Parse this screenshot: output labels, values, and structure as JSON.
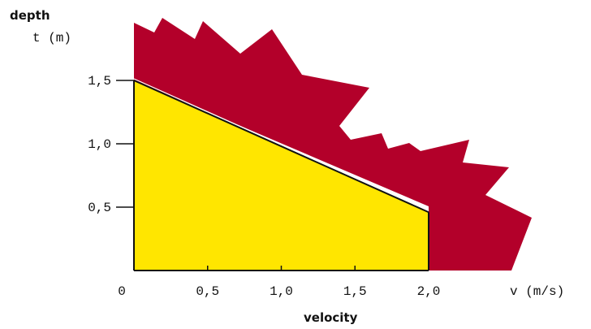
{
  "chart_data": {
    "type": "area",
    "colors": {
      "fill": "#ffe600",
      "jagged": "#b3002a"
    },
    "xlim": [
      0,
      2.0
    ],
    "ylim": [
      0,
      1.5
    ],
    "x_ticks": [
      {
        "value": 0,
        "label": "0"
      },
      {
        "value": 0.5,
        "label": "0,5"
      },
      {
        "value": 1.0,
        "label": "1,0"
      },
      {
        "value": 1.5,
        "label": "1,5"
      },
      {
        "value": 2.0,
        "label": "2,0"
      }
    ],
    "y_ticks": [
      {
        "value": 0.5,
        "label": "0,5"
      },
      {
        "value": 1.0,
        "label": "1,0"
      },
      {
        "value": 1.5,
        "label": "1,5"
      }
    ],
    "x_unit": "v (m/s)",
    "y_unit": "t (m)",
    "xlabel": "velocity",
    "ylabel": "depth",
    "series": [
      {
        "x": [
          0,
          2.0
        ],
        "y": [
          1.5,
          0.46
        ]
      }
    ]
  }
}
